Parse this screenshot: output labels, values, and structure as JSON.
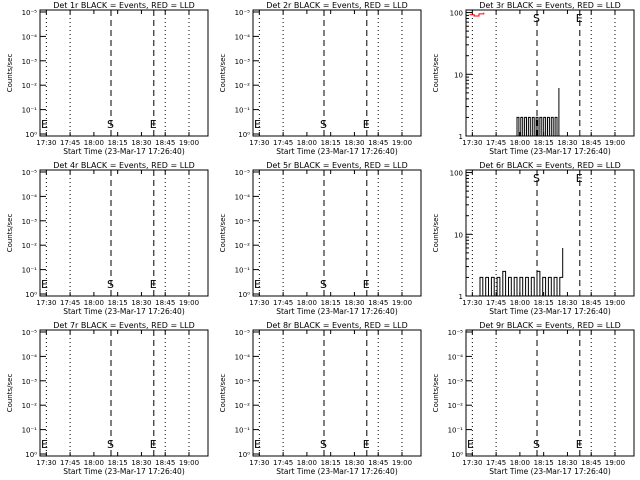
{
  "chart_data": [
    {
      "type": "line",
      "title": "Det 1r BLACK = Events, RED = LLD",
      "xlabel": "Start Time (23-Mar-17 17:26:40)",
      "ylabel": "Counts/sec",
      "scale": "log",
      "yticks": [
        "10⁰",
        "10⁻¹",
        "10⁻²",
        "10⁻³",
        "10⁻⁴",
        "10⁻⁵"
      ],
      "xticks": [
        "17:30",
        "17:45",
        "18:00",
        "18:15",
        "18:30",
        "18:45",
        "19:00"
      ],
      "series": []
    },
    {
      "type": "line",
      "title": "Det 2r BLACK = Events, RED = LLD",
      "xlabel": "Start Time (23-Mar-17 17:26:40)",
      "ylabel": "Counts/sec",
      "scale": "log",
      "yticks": [
        "10⁰",
        "10⁻¹",
        "10⁻²",
        "10⁻³",
        "10⁻⁴",
        "10⁻⁵"
      ],
      "xticks": [
        "17:30",
        "17:45",
        "18:00",
        "18:15",
        "18:30",
        "18:45",
        "19:00"
      ],
      "series": []
    },
    {
      "type": "line",
      "title": "Det 3r BLACK = Events, RED = LLD",
      "xlabel": "Start Time (23-Mar-17 17:26:40)",
      "ylabel": "Counts/sec",
      "scale": "log",
      "yticks": [
        "1",
        "10",
        "100"
      ],
      "xticks": [
        "17:30",
        "17:45",
        "18:00",
        "18:15",
        "18:30",
        "18:45",
        "19:00"
      ],
      "series": [
        {
          "color": "#000000",
          "x": [
            17.95,
            17.97,
            17.99,
            18.01,
            18.03,
            18.05,
            18.07,
            18.09,
            18.11,
            18.13,
            18.15,
            18.17,
            18.19,
            18.21,
            18.23,
            18.25,
            18.27,
            18.29,
            18.31,
            18.33,
            18.35,
            18.37,
            18.39,
            18.41
          ],
          "values": [
            1,
            2,
            1,
            2,
            1,
            2,
            1,
            2,
            1,
            2,
            1,
            2,
            1,
            2,
            1,
            2,
            1,
            2,
            1,
            2,
            1,
            2,
            1,
            6
          ]
        },
        {
          "color": "#ff0000",
          "x": [
            17.47,
            17.52,
            17.57,
            17.62
          ],
          "values": [
            92,
            88,
            95,
            100
          ]
        }
      ]
    },
    {
      "type": "line",
      "title": "Det 4r BLACK = Events, RED = LLD",
      "xlabel": "Start Time (23-Mar-17 17:26:40)",
      "ylabel": "Counts/sec",
      "scale": "log",
      "yticks": [
        "10⁰",
        "10⁻¹",
        "10⁻²",
        "10⁻³",
        "10⁻⁴",
        "10⁻⁵"
      ],
      "xticks": [
        "17:30",
        "17:45",
        "18:00",
        "18:15",
        "18:30",
        "18:45",
        "19:00"
      ],
      "series": []
    },
    {
      "type": "line",
      "title": "Det 5r BLACK = Events, RED = LLD",
      "xlabel": "Start Time (23-Mar-17 17:26:40)",
      "ylabel": "Counts/sec",
      "scale": "log",
      "yticks": [
        "10⁰",
        "10⁻¹",
        "10⁻²",
        "10⁻³",
        "10⁻⁴",
        "10⁻⁵"
      ],
      "xticks": [
        "17:30",
        "17:45",
        "18:00",
        "18:15",
        "18:30",
        "18:45",
        "19:00"
      ],
      "series": []
    },
    {
      "type": "line",
      "title": "Det 6r BLACK = Events, RED = LLD",
      "xlabel": "Start Time (23-Mar-17 17:26:40)",
      "ylabel": "Counts/sec",
      "scale": "log",
      "yticks": [
        "1",
        "10",
        "100"
      ],
      "xticks": [
        "17:30",
        "17:45",
        "18:00",
        "18:15",
        "18:30",
        "18:45",
        "19:00"
      ],
      "series": [
        {
          "color": "#000000",
          "x": [
            17.55,
            17.58,
            17.61,
            17.64,
            17.67,
            17.7,
            17.73,
            17.76,
            17.79,
            17.82,
            17.85,
            17.88,
            17.91,
            17.94,
            17.97,
            18.0,
            18.03,
            18.06,
            18.09,
            18.12,
            18.15,
            18.18,
            18.21,
            18.24,
            18.27,
            18.3,
            18.33,
            18.36,
            18.39,
            18.42,
            18.45
          ],
          "values": [
            1,
            2,
            1,
            2,
            1,
            2,
            1,
            2,
            1,
            2.5,
            1,
            2,
            1,
            2,
            1,
            2,
            1,
            2,
            1,
            2,
            1,
            2.5,
            1,
            2,
            1,
            2,
            1,
            2,
            1,
            2,
            6
          ]
        }
      ]
    },
    {
      "type": "line",
      "title": "Det 7r BLACK = Events, RED = LLD",
      "xlabel": "Start Time (23-Mar-17 17:26:40)",
      "ylabel": "Counts/sec",
      "scale": "log",
      "yticks": [
        "10⁰",
        "10⁻¹",
        "10⁻²",
        "10⁻³",
        "10⁻⁴",
        "10⁻⁵"
      ],
      "xticks": [
        "17:30",
        "17:45",
        "18:00",
        "18:15",
        "18:30",
        "18:45",
        "19:00"
      ],
      "series": []
    },
    {
      "type": "line",
      "title": "Det 8r BLACK = Events, RED = LLD",
      "xlabel": "Start Time (23-Mar-17 17:26:40)",
      "ylabel": "Counts/sec",
      "scale": "log",
      "yticks": [
        "10⁰",
        "10⁻¹",
        "10⁻²",
        "10⁻³",
        "10⁻⁴",
        "10⁻⁵"
      ],
      "xticks": [
        "17:30",
        "17:45",
        "18:00",
        "18:15",
        "18:30",
        "18:45",
        "19:00"
      ],
      "series": []
    },
    {
      "type": "line",
      "title": "Det 9r BLACK = Events, RED = LLD",
      "xlabel": "Start Time (23-Mar-17 17:26:40)",
      "ylabel": "Counts/sec",
      "scale": "log",
      "yticks": [
        "10⁰",
        "10⁻¹",
        "10⁻²",
        "10⁻³",
        "10⁻⁴",
        "10⁻⁵"
      ],
      "xticks": [
        "17:30",
        "17:45",
        "18:00",
        "18:15",
        "18:30",
        "18:45",
        "19:00"
      ],
      "series": []
    }
  ],
  "markers": {
    "start_label": "S",
    "end_label": "E"
  }
}
